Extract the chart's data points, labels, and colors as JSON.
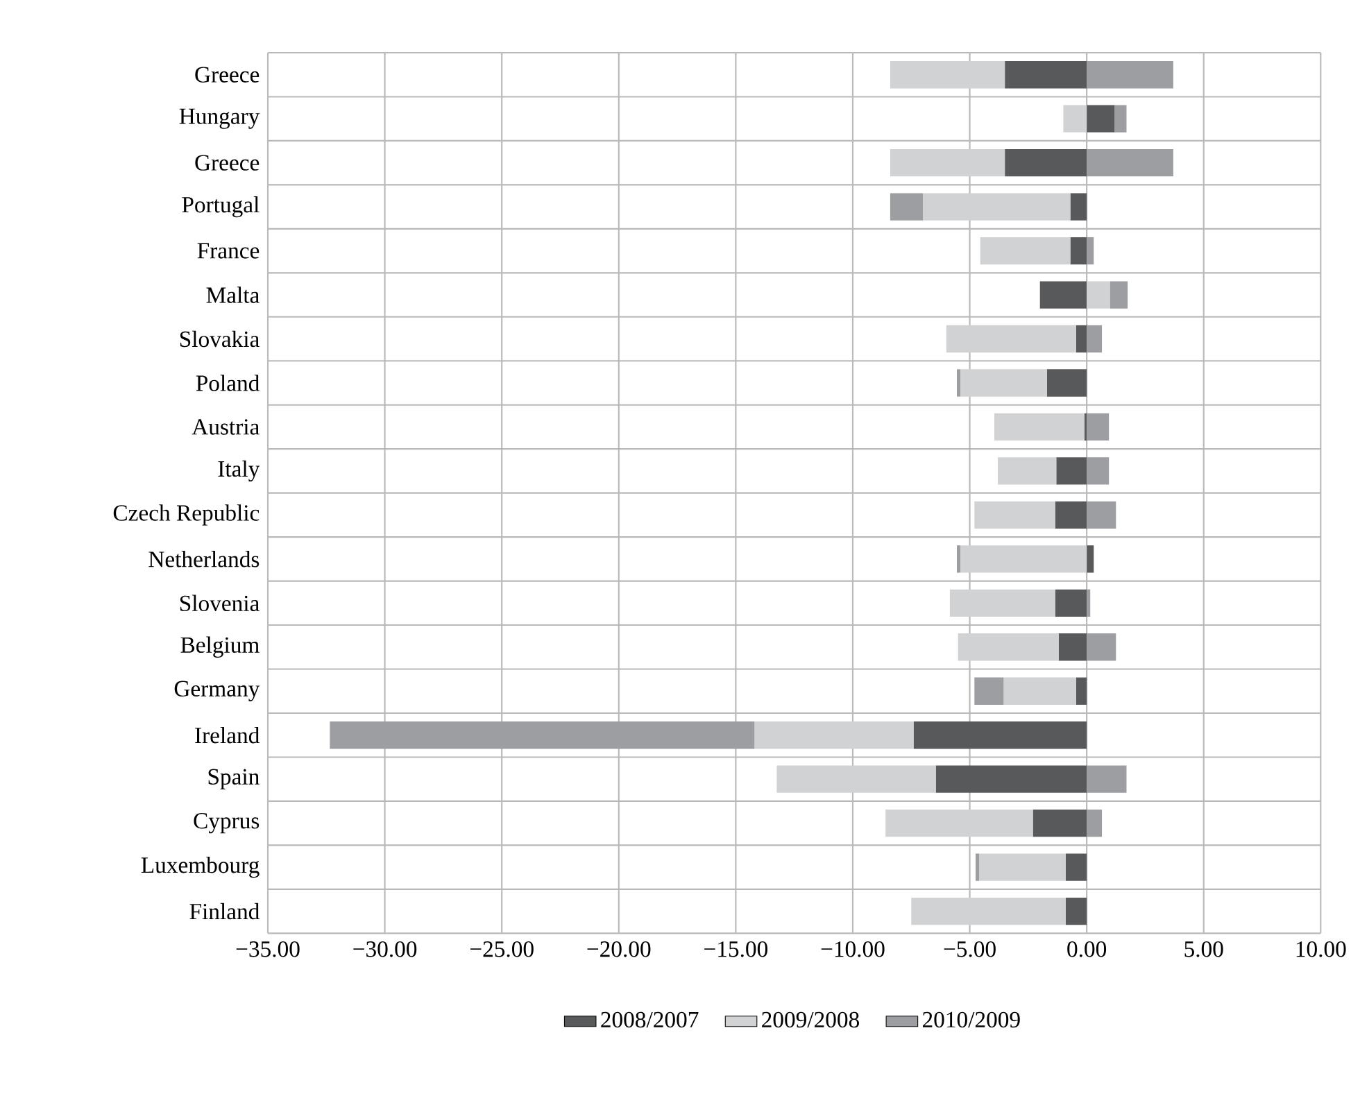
{
  "chart_data": {
    "type": "bar",
    "orientation": "horizontal",
    "stacked": true,
    "categories": [
      "Greece",
      "Hungary",
      "Greece",
      "Portugal",
      "France",
      "Malta",
      "Slovakia",
      "Poland",
      "Austria",
      "Italy",
      "Czech Republic",
      "Netherlands",
      "Slovenia",
      "Belgium",
      "Germany",
      "Ireland",
      "Spain",
      "Cyprus",
      "Luxembourg",
      "Finland"
    ],
    "series": [
      {
        "name": "2008/2007",
        "color": "#58595b",
        "values": [
          -3.5,
          1.2,
          -3.5,
          -0.7,
          -0.7,
          -2.0,
          -0.45,
          -1.7,
          -0.1,
          -1.3,
          -1.35,
          0.3,
          -1.35,
          -1.2,
          -0.45,
          -7.4,
          -6.45,
          -2.3,
          -0.9,
          -0.9
        ]
      },
      {
        "name": "2009/2008",
        "color": "#d1d2d4",
        "values": [
          -4.9,
          -1.0,
          -4.9,
          -6.3,
          -3.85,
          1.0,
          -5.55,
          -3.7,
          -3.85,
          -2.5,
          -3.45,
          -5.4,
          -4.5,
          -4.3,
          -3.1,
          -6.8,
          -6.8,
          -6.3,
          -3.7,
          -6.6
        ]
      },
      {
        "name": "2010/2009",
        "color": "#9d9ea2",
        "values": [
          3.7,
          0.5,
          3.7,
          -1.4,
          0.3,
          0.75,
          0.65,
          -0.15,
          0.95,
          0.95,
          1.25,
          -0.15,
          0.15,
          1.25,
          -1.25,
          -18.15,
          1.7,
          0.65,
          -0.15,
          null
        ]
      }
    ],
    "xlim": [
      -35,
      10
    ],
    "xticks": [
      {
        "value": -35,
        "label": "−35.00"
      },
      {
        "value": -30,
        "label": "−30.00"
      },
      {
        "value": -25,
        "label": "−25.00"
      },
      {
        "value": -20,
        "label": "−20.00"
      },
      {
        "value": -15,
        "label": "−15.00"
      },
      {
        "value": -10,
        "label": "−10.00"
      },
      {
        "value": -5,
        "label": "−5.00"
      },
      {
        "value": 0,
        "label": "0.00"
      },
      {
        "value": 5,
        "label": "5.00"
      },
      {
        "value": 10,
        "label": "10.00"
      }
    ],
    "grid": true,
    "legend": "bottom"
  }
}
